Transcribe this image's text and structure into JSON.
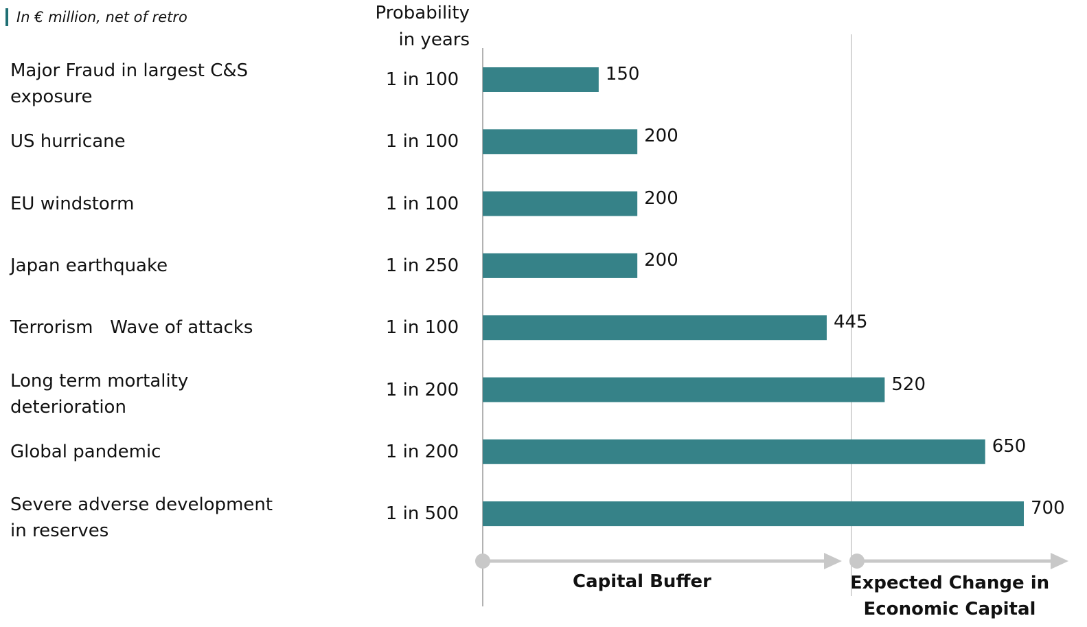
{
  "chart_data": {
    "type": "barh",
    "subtitle": "In € million, net of retro",
    "probability_header": "Probability in years",
    "categories": [
      "Major Fraud in largest C&S exposure",
      "US hurricane",
      "EU windstorm",
      "Japan earthquake",
      "Terrorism   Wave of attacks",
      "Long term mortality deterioration",
      "Global pandemic",
      "Severe adverse development in reserves"
    ],
    "probabilities": [
      "1 in 100",
      "1 in 100",
      "1 in 100",
      "1 in 250",
      "1 in 100",
      "1 in 200",
      "1 in 200",
      "1 in 500"
    ],
    "values": [
      150,
      200,
      200,
      200,
      445,
      520,
      650,
      700
    ],
    "color": "#368288",
    "xlim": [
      0,
      700
    ],
    "annotations": [
      "Capital Buffer",
      "Expected Change in Economic Capital"
    ]
  }
}
